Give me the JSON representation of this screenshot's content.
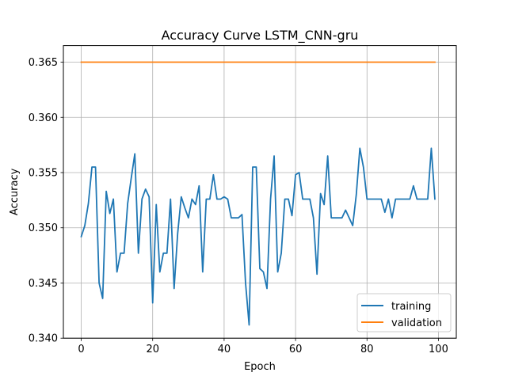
{
  "chart_data": {
    "type": "line",
    "title": "Accuracy Curve LSTM_CNN-gru",
    "xlabel": "Epoch",
    "ylabel": "Accuracy",
    "xlim": [
      -5,
      105
    ],
    "ylim": [
      0.34,
      0.3665
    ],
    "xticks": [
      0,
      20,
      40,
      60,
      80,
      100
    ],
    "xtick_labels": [
      "0",
      "20",
      "40",
      "60",
      "80",
      "100"
    ],
    "yticks": [
      0.34,
      0.345,
      0.35,
      0.355,
      0.36,
      0.365
    ],
    "ytick_labels": [
      "0.340",
      "0.345",
      "0.350",
      "0.355",
      "0.360",
      "0.365"
    ],
    "grid": true,
    "legend_position": "lower-right",
    "series": [
      {
        "name": "training",
        "color": "#1f77b4",
        "x": [
          0,
          1,
          2,
          3,
          4,
          5,
          6,
          7,
          8,
          9,
          10,
          11,
          12,
          13,
          14,
          15,
          16,
          17,
          18,
          19,
          20,
          21,
          22,
          23,
          24,
          25,
          26,
          27,
          28,
          29,
          30,
          31,
          32,
          33,
          34,
          35,
          36,
          37,
          38,
          39,
          40,
          41,
          42,
          43,
          44,
          45,
          46,
          47,
          48,
          49,
          50,
          51,
          52,
          53,
          54,
          55,
          56,
          57,
          58,
          59,
          60,
          61,
          62,
          63,
          64,
          65,
          66,
          67,
          68,
          69,
          70,
          71,
          72,
          73,
          74,
          75,
          76,
          77,
          78,
          79,
          80,
          81,
          82,
          83,
          84,
          85,
          86,
          87,
          88,
          89,
          90,
          91,
          92,
          93,
          94,
          95,
          96,
          97,
          98,
          99
        ],
        "values": [
          0.3492,
          0.3502,
          0.3522,
          0.3555,
          0.3555,
          0.345,
          0.3436,
          0.3533,
          0.3513,
          0.3526,
          0.346,
          0.3477,
          0.3477,
          0.3522,
          0.3545,
          0.3567,
          0.3477,
          0.3526,
          0.3535,
          0.3528,
          0.3432,
          0.3521,
          0.346,
          0.3477,
          0.3477,
          0.3526,
          0.3445,
          0.3495,
          0.3528,
          0.3518,
          0.3509,
          0.3526,
          0.3521,
          0.3538,
          0.346,
          0.3526,
          0.3526,
          0.3548,
          0.3526,
          0.3526,
          0.3528,
          0.3526,
          0.3509,
          0.3509,
          0.3509,
          0.3512,
          0.345,
          0.3412,
          0.3555,
          0.3555,
          0.3463,
          0.346,
          0.3445,
          0.3526,
          0.3565,
          0.346,
          0.3477,
          0.3526,
          0.3526,
          0.3511,
          0.3548,
          0.355,
          0.3526,
          0.3526,
          0.3526,
          0.3509,
          0.3458,
          0.3531,
          0.3521,
          0.3565,
          0.3509,
          0.3509,
          0.3509,
          0.3509,
          0.3516,
          0.3509,
          0.3502,
          0.353,
          0.3572,
          0.3555,
          0.3526,
          0.3526,
          0.3526,
          0.3526,
          0.3526,
          0.3514,
          0.3526,
          0.3509,
          0.3526,
          0.3526,
          0.3526,
          0.3526,
          0.3526,
          0.3538,
          0.3526,
          0.3526,
          0.3526,
          0.3526,
          0.3572,
          0.3526
        ]
      },
      {
        "name": "validation",
        "color": "#ff7f0e",
        "x": [
          0,
          99
        ],
        "values": [
          0.365,
          0.365
        ]
      }
    ]
  }
}
